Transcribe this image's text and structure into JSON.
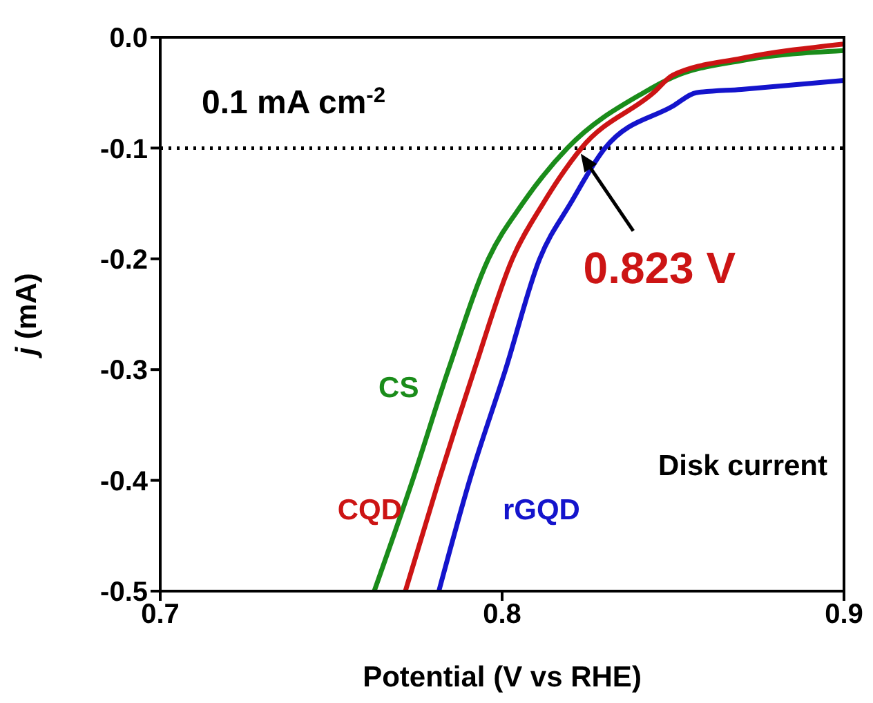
{
  "chart_data": {
    "type": "line",
    "xlabel": "Potential (V vs RHE)",
    "ylabel": "j (mA)",
    "xlim": [
      0.7,
      0.9
    ],
    "xticks": [
      0.7,
      0.8,
      0.9
    ],
    "ylim": [
      -0.5,
      0.0
    ],
    "yticks": [
      {
        "value": -0.5,
        "label": "-0.5"
      },
      {
        "value": -0.4,
        "label": "-0.4"
      },
      {
        "value": -0.3,
        "label": "-0.3"
      },
      {
        "value": -0.2,
        "label": "-0.2"
      },
      {
        "value": -0.1,
        "label": "-0.1"
      },
      {
        "value": 0,
        "label": "0.0"
      }
    ],
    "grid": false,
    "marker": "none",
    "line_style": "solid",
    "series": [
      {
        "name": "CS",
        "color": "#1a8c1a",
        "x": [
          0.7626,
          0.7738,
          0.7843,
          0.796,
          0.806,
          0.8191,
          0.8414,
          0.85,
          0.87,
          0.9
        ],
        "values": [
          -0.5,
          -0.4,
          -0.3,
          -0.2,
          -0.15,
          -0.1,
          -0.05,
          -0.036,
          -0.021,
          -0.012
        ]
      },
      {
        "name": "CQD",
        "color": "#cc1414",
        "x": [
          0.7717,
          0.7815,
          0.7919,
          0.803,
          0.812,
          0.8232,
          0.8443,
          0.85,
          0.87,
          0.9
        ],
        "values": [
          -0.5,
          -0.4,
          -0.3,
          -0.2,
          -0.15,
          -0.1,
          -0.05,
          -0.034,
          -0.019,
          -0.006
        ]
      },
      {
        "name": "rGQD",
        "color": "#1414cc",
        "x": [
          0.7815,
          0.7905,
          0.801,
          0.811,
          0.82,
          0.8301,
          0.85,
          0.8568,
          0.87,
          0.9
        ],
        "values": [
          -0.5,
          -0.4,
          -0.3,
          -0.2,
          -0.15,
          -0.1,
          -0.062,
          -0.05,
          -0.047,
          -0.039
        ]
      }
    ],
    "ref_lines": [
      {
        "axis": "y",
        "value": -0.1,
        "label": "0.1 mA cm$^{-2}$",
        "color": "#000000",
        "line_style": "dotted"
      }
    ],
    "annotations": [
      {
        "text": "0.823 V",
        "x": 0.823,
        "y": -0.1
      },
      "Disk current"
    ]
  }
}
